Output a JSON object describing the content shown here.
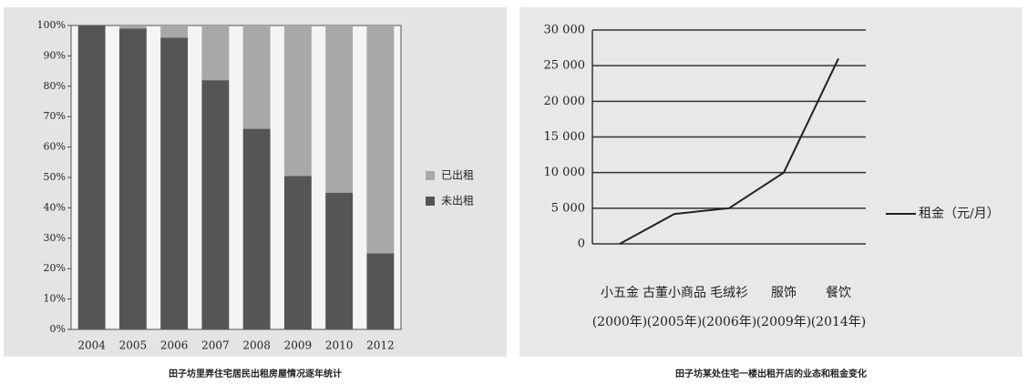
{
  "chart_data": [
    {
      "type": "stacked_bar",
      "title": "田子坊里弄住宅居民出租房屋情况逐年统计",
      "categories": [
        "2004",
        "2005",
        "2006",
        "2007",
        "2008",
        "2009",
        "2010",
        "2012"
      ],
      "series": [
        {
          "name": "未出租",
          "color": "#555555",
          "values": [
            100,
            99,
            96,
            82,
            66,
            50.5,
            45,
            25
          ]
        },
        {
          "name": "已出租",
          "color": "#a8a8a8",
          "values": [
            0,
            1,
            4,
            18,
            34,
            49.5,
            55,
            75
          ]
        }
      ],
      "ylim": [
        0,
        100
      ],
      "yticks": [
        {
          "value": 0,
          "label": "0%"
        },
        {
          "value": 10,
          "label": "10%"
        },
        {
          "value": 20,
          "label": "20%"
        },
        {
          "value": 30,
          "label": "30%"
        },
        {
          "value": 40,
          "label": "40%"
        },
        {
          "value": 50,
          "label": "50%"
        },
        {
          "value": 60,
          "label": "60%"
        },
        {
          "value": 70,
          "label": "70%"
        },
        {
          "value": 80,
          "label": "80%"
        },
        {
          "value": 90,
          "label": "90%"
        },
        {
          "value": 100,
          "label": "100%"
        }
      ]
    },
    {
      "type": "line",
      "title": "田子坊某处住宅一楼出租开店的业态和租金变化",
      "categories": [
        "小五金",
        "古董小商品",
        "毛绒衫",
        "服饰",
        "餐饮"
      ],
      "category_sublabels": [
        "(2000年)",
        "(2005年)",
        "(2006年)",
        "(2009年)",
        "(2014年)"
      ],
      "series": [
        {
          "name": "租金（元/月）",
          "color": "#222222",
          "values": [
            0,
            4200,
            5000,
            10000,
            26000
          ]
        }
      ],
      "ylim": [
        0,
        30000
      ],
      "yticks": [
        0,
        {
          "value": 5000,
          "label": "5 000"
        },
        {
          "value": 10000,
          "label": "10 000"
        },
        {
          "value": 15000,
          "label": "15 000"
        },
        {
          "value": 20000,
          "label": "20 000"
        },
        {
          "value": 25000,
          "label": "25 000"
        },
        {
          "value": 30000,
          "label": "30 000"
        }
      ],
      "grid": true
    }
  ]
}
